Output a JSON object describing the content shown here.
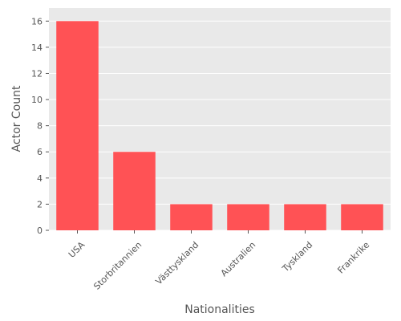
{
  "chart_data": {
    "type": "bar",
    "categories": [
      "USA",
      "Storbritannien",
      "Västtyskland",
      "Australien",
      "Tyskland",
      "Frankrike"
    ],
    "values": [
      16,
      6,
      2,
      2,
      2,
      2
    ],
    "xlabel": "Nationalities",
    "ylabel": "Actor Count",
    "ylim": [
      0,
      17
    ],
    "yticks": [
      0,
      2,
      4,
      6,
      8,
      10,
      12,
      14,
      16
    ],
    "grid": true,
    "colors": {
      "bar": "#ff5255",
      "plot_background": "#e9e9e9",
      "grid": "#ffffff",
      "text": "#555555"
    }
  }
}
